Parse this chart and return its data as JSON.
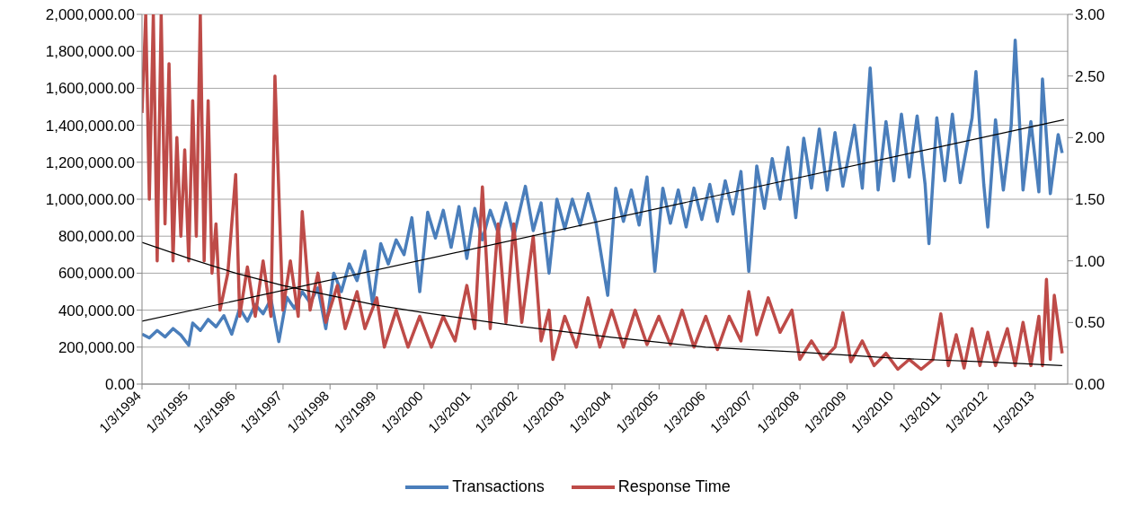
{
  "chart_data": {
    "type": "line",
    "legend": "bottom",
    "grid": "y",
    "marker": "none",
    "line_style": "solid",
    "xlim": [
      "1994-01-03",
      "2013-09-13"
    ],
    "xticks": [
      {
        "value": "1994-01-03",
        "label": "1/3/1994"
      },
      {
        "value": "1995-01-03",
        "label": "1/3/1995"
      },
      {
        "value": "1996-01-03",
        "label": "1/3/1996"
      },
      {
        "value": "1997-01-03",
        "label": "1/3/1997"
      },
      {
        "value": "1998-01-03",
        "label": "1/3/1998"
      },
      {
        "value": "1999-01-03",
        "label": "1/3/1999"
      },
      {
        "value": "2000-01-03",
        "label": "1/3/2000"
      },
      {
        "value": "2001-01-03",
        "label": "1/3/2001"
      },
      {
        "value": "2002-01-03",
        "label": "1/3/2002"
      },
      {
        "value": "2003-01-03",
        "label": "1/3/2003"
      },
      {
        "value": "2004-01-03",
        "label": "1/3/2004"
      },
      {
        "value": "2005-01-03",
        "label": "1/3/2005"
      },
      {
        "value": "2006-01-03",
        "label": "1/3/2006"
      },
      {
        "value": "2007-01-03",
        "label": "1/3/2007"
      },
      {
        "value": "2008-01-03",
        "label": "1/3/2008"
      },
      {
        "value": "2009-01-03",
        "label": "1/3/2009"
      },
      {
        "value": "2010-01-03",
        "label": "1/3/2010"
      },
      {
        "value": "2011-01-03",
        "label": "1/3/2011"
      },
      {
        "value": "2012-01-03",
        "label": "1/3/2012"
      },
      {
        "value": "2013-01-03",
        "label": "1/3/2013"
      }
    ],
    "ylim": [
      0,
      2000000
    ],
    "yticks": [
      {
        "value": 0,
        "label": "0.00"
      },
      {
        "value": 200000,
        "label": "200,000.00"
      },
      {
        "value": 400000,
        "label": "400,000.00"
      },
      {
        "value": 600000,
        "label": "600,000.00"
      },
      {
        "value": 800000,
        "label": "800,000.00"
      },
      {
        "value": 1000000,
        "label": "1,000,000.00"
      },
      {
        "value": 1200000,
        "label": "1,200,000.00"
      },
      {
        "value": 1400000,
        "label": "1,400,000.00"
      },
      {
        "value": 1600000,
        "label": "1,600,000.00"
      },
      {
        "value": 1800000,
        "label": "1,800,000.00"
      },
      {
        "value": 2000000,
        "label": "2,000,000.00"
      }
    ],
    "y2lim": [
      0,
      3
    ],
    "y2ticks": [
      {
        "value": 0,
        "label": "0.00"
      },
      {
        "value": 0.5,
        "label": "0.50"
      },
      {
        "value": 1,
        "label": "1.00"
      },
      {
        "value": 1.5,
        "label": "1.50"
      },
      {
        "value": 2,
        "label": "2.00"
      },
      {
        "value": 2.5,
        "label": "2.50"
      },
      {
        "value": 3,
        "label": "3.00"
      }
    ],
    "series": [
      {
        "name": "Transactions",
        "color": "#4a7ebb",
        "x": [
          "1994-01-03",
          "1994-03",
          "1994-05",
          "1994-07",
          "1994-09",
          "1994-11",
          "1995-01",
          "1995-02",
          "1995-04",
          "1995-06",
          "1995-08",
          "1995-10",
          "1995-12",
          "1996-02",
          "1996-04",
          "1996-06",
          "1996-08",
          "1996-10",
          "1996-12",
          "1997-02",
          "1997-04",
          "1997-06",
          "1997-08",
          "1997-10",
          "1997-12",
          "1998-02",
          "1998-04",
          "1998-06",
          "1998-08",
          "1998-10",
          "1998-12",
          "1999-02",
          "1999-04",
          "1999-06",
          "1999-08",
          "1999-10",
          "1999-12",
          "2000-02",
          "2000-04",
          "2000-06",
          "2000-08",
          "2000-10",
          "2000-12",
          "2001-02",
          "2001-04",
          "2001-06",
          "2001-08",
          "2001-10",
          "2001-12",
          "2002-03",
          "2002-05",
          "2002-07",
          "2002-09",
          "2002-11",
          "2003-01",
          "2003-03",
          "2003-05",
          "2003-07",
          "2003-09",
          "2003-12",
          "2004-02",
          "2004-04",
          "2004-06",
          "2004-08",
          "2004-10",
          "2004-12",
          "2005-02",
          "2005-04",
          "2005-06",
          "2005-08",
          "2005-10",
          "2005-12",
          "2006-02",
          "2006-04",
          "2006-06",
          "2006-08",
          "2006-10",
          "2006-12",
          "2007-02",
          "2007-04",
          "2007-06",
          "2007-08",
          "2007-10",
          "2007-12",
          "2008-02",
          "2008-04",
          "2008-06",
          "2008-08",
          "2008-10",
          "2008-12",
          "2009-03",
          "2009-05",
          "2009-07",
          "2009-09",
          "2009-11",
          "2010-01",
          "2010-03",
          "2010-05",
          "2010-07",
          "2010-09",
          "2010-10",
          "2010-12",
          "2011-02",
          "2011-04",
          "2011-06",
          "2011-09",
          "2011-10",
          "2011-12",
          "2012-01",
          "2012-03",
          "2012-05",
          "2012-07",
          "2012-08",
          "2012-10",
          "2012-12",
          "2013-02",
          "2013-03",
          "2013-05",
          "2013-07",
          "2013-08"
        ],
        "values": [
          270000,
          250000,
          290000,
          255000,
          300000,
          265000,
          210000,
          330000,
          290000,
          350000,
          310000,
          370000,
          270000,
          410000,
          340000,
          430000,
          380000,
          460000,
          230000,
          470000,
          410000,
          500000,
          440000,
          520000,
          300000,
          600000,
          500000,
          650000,
          560000,
          720000,
          430000,
          760000,
          650000,
          780000,
          700000,
          900000,
          500000,
          930000,
          790000,
          940000,
          740000,
          960000,
          680000,
          950000,
          780000,
          940000,
          820000,
          980000,
          800000,
          1070000,
          830000,
          980000,
          600000,
          1000000,
          840000,
          1000000,
          860000,
          1030000,
          870000,
          480000,
          1060000,
          880000,
          1050000,
          860000,
          1120000,
          610000,
          1060000,
          870000,
          1050000,
          850000,
          1060000,
          890000,
          1080000,
          880000,
          1100000,
          920000,
          1150000,
          610000,
          1180000,
          950000,
          1220000,
          1000000,
          1280000,
          900000,
          1330000,
          1060000,
          1380000,
          1050000,
          1360000,
          1070000,
          1400000,
          1060000,
          1710000,
          1050000,
          1420000,
          1100000,
          1460000,
          1120000,
          1450000,
          1080000,
          760000,
          1440000,
          1100000,
          1460000,
          1090000,
          1440000,
          1690000,
          1080000,
          850000,
          1430000,
          1050000,
          1400000,
          1860000,
          1050000,
          1420000,
          1040000,
          1650000,
          1030000,
          1350000,
          1250000
        ]
      },
      {
        "name": "Response Time",
        "color": "#be4b48",
        "axis": "y2",
        "x": [
          "1994-01-03",
          "1994-02",
          "1994-03",
          "1994-04",
          "1994-05",
          "1994-06",
          "1994-07",
          "1994-08",
          "1994-09",
          "1994-10",
          "1994-11",
          "1994-12",
          "1995-01",
          "1995-02",
          "1995-03",
          "1995-04",
          "1995-05",
          "1995-06",
          "1995-07",
          "1995-08",
          "1995-09",
          "1995-11",
          "1996-01",
          "1996-02",
          "1996-04",
          "1996-06",
          "1996-08",
          "1996-10",
          "1996-11",
          "1997-01",
          "1997-03",
          "1997-05",
          "1997-06",
          "1997-08",
          "1997-10",
          "1997-12",
          "1998-03",
          "1998-05",
          "1998-08",
          "1998-10",
          "1999-01",
          "1999-03",
          "1999-06",
          "1999-09",
          "1999-12",
          "2000-03",
          "2000-06",
          "2000-09",
          "2000-12",
          "2001-02",
          "2001-04",
          "2001-06",
          "2001-08",
          "2001-10",
          "2001-12",
          "2002-02",
          "2002-05",
          "2002-07",
          "2002-09",
          "2002-10",
          "2003-01",
          "2003-04",
          "2003-07",
          "2003-10",
          "2004-01",
          "2004-04",
          "2004-07",
          "2004-10",
          "2005-01",
          "2005-04",
          "2005-07",
          "2005-10",
          "2006-01",
          "2006-04",
          "2006-07",
          "2006-10",
          "2006-12",
          "2007-02",
          "2007-05",
          "2007-08",
          "2007-11",
          "2008-01",
          "2008-04",
          "2008-07",
          "2008-10",
          "2008-12",
          "2009-02",
          "2009-05",
          "2009-08",
          "2009-11",
          "2010-02",
          "2010-05",
          "2010-08",
          "2010-11",
          "2011-01",
          "2011-03",
          "2011-05",
          "2011-07",
          "2011-09",
          "2011-11",
          "2012-01",
          "2012-03",
          "2012-06",
          "2012-08",
          "2012-10",
          "2012-12",
          "2013-02",
          "2013-03",
          "2013-04",
          "2013-05",
          "2013-06",
          "2013-08"
        ],
        "values": [
          2.2,
          3.0,
          1.5,
          3.0,
          1.0,
          3.0,
          1.3,
          2.6,
          1.0,
          2.0,
          1.2,
          1.9,
          1.0,
          2.3,
          1.2,
          3.0,
          1.0,
          2.3,
          0.9,
          1.3,
          0.6,
          0.9,
          1.7,
          0.55,
          0.95,
          0.55,
          1.0,
          0.55,
          2.5,
          0.6,
          1.0,
          0.55,
          1.4,
          0.6,
          0.9,
          0.5,
          0.8,
          0.45,
          0.75,
          0.45,
          0.7,
          0.3,
          0.6,
          0.3,
          0.55,
          0.3,
          0.55,
          0.35,
          0.8,
          0.45,
          1.6,
          0.45,
          1.3,
          0.5,
          1.3,
          0.5,
          1.2,
          0.35,
          0.6,
          0.2,
          0.55,
          0.3,
          0.7,
          0.3,
          0.6,
          0.3,
          0.6,
          0.32,
          0.55,
          0.32,
          0.6,
          0.3,
          0.55,
          0.28,
          0.55,
          0.35,
          0.75,
          0.4,
          0.7,
          0.42,
          0.6,
          0.2,
          0.35,
          0.2,
          0.3,
          0.58,
          0.18,
          0.35,
          0.15,
          0.25,
          0.12,
          0.2,
          0.12,
          0.2,
          0.57,
          0.15,
          0.4,
          0.13,
          0.45,
          0.15,
          0.42,
          0.15,
          0.45,
          0.15,
          0.5,
          0.15,
          0.55,
          0.15,
          0.85,
          0.2,
          0.72,
          0.25
        ]
      },
      {
        "type": "line",
        "color": "#000000",
        "x": [
          "1994-01-03",
          "2013-08-15"
        ],
        "values": [
          340000,
          1430000
        ]
      },
      {
        "type": "line",
        "color": "#000000",
        "axis": "y2",
        "x": [
          "1994-01-03",
          "1995-01",
          "1996-01",
          "1997-01",
          "1998-01",
          "1999-01",
          "2000-01",
          "2002-01",
          "2004-01",
          "2006-01",
          "2008-01",
          "2010-01",
          "2012-01",
          "2013-08"
        ],
        "values": [
          1.15,
          1.02,
          0.9,
          0.8,
          0.72,
          0.64,
          0.58,
          0.47,
          0.38,
          0.3,
          0.26,
          0.21,
          0.18,
          0.15
        ]
      }
    ]
  }
}
